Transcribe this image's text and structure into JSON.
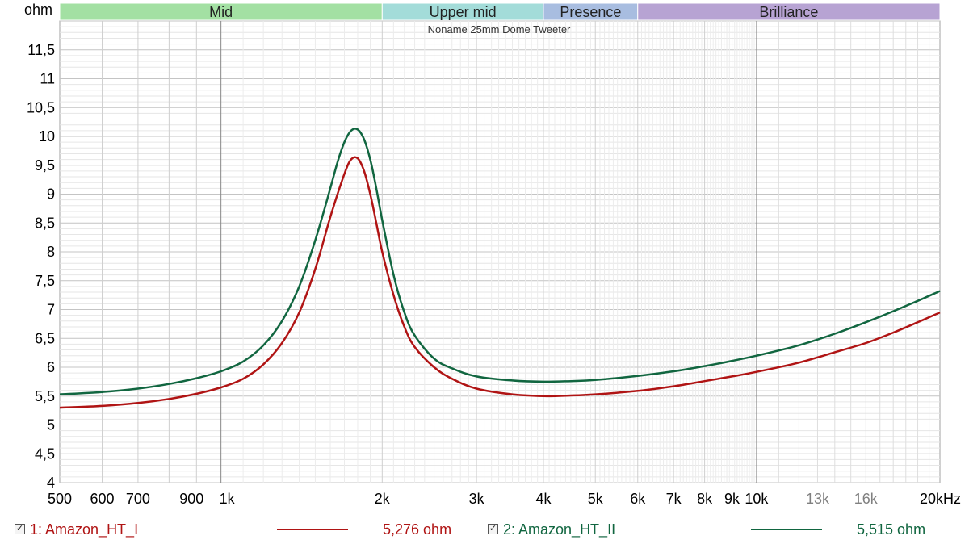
{
  "chart_data": {
    "type": "line",
    "title": "Noname 25mm Dome Tweeter",
    "unit_label": "ohm",
    "xlabel": "Hz",
    "x_scale": "log",
    "xlim": [
      500,
      22000
    ],
    "ylim": [
      4,
      12
    ],
    "grid": true,
    "y_ticks": [
      {
        "value": 4,
        "label": "4"
      },
      {
        "value": 4.5,
        "label": "4,5"
      },
      {
        "value": 5,
        "label": "5"
      },
      {
        "value": 5.5,
        "label": "5,5"
      },
      {
        "value": 6,
        "label": "6"
      },
      {
        "value": 6.5,
        "label": "6,5"
      },
      {
        "value": 7,
        "label": "7"
      },
      {
        "value": 7.5,
        "label": "7,5"
      },
      {
        "value": 8,
        "label": "8"
      },
      {
        "value": 8.5,
        "label": "8,5"
      },
      {
        "value": 9,
        "label": "9"
      },
      {
        "value": 9.5,
        "label": "9,5"
      },
      {
        "value": 10,
        "label": "10"
      },
      {
        "value": 10.5,
        "label": "10,5"
      },
      {
        "value": 11,
        "label": "11"
      },
      {
        "value": 11.5,
        "label": "11,5"
      }
    ],
    "x_ticks": [
      {
        "value": 500,
        "label": "500",
        "color": "#000000"
      },
      {
        "value": 600,
        "label": "600",
        "color": "#000000"
      },
      {
        "value": 700,
        "label": "700",
        "color": "#000000"
      },
      {
        "value": 900,
        "label": "900",
        "color": "#000000"
      },
      {
        "value": 1000,
        "label": "1k",
        "color": "#000000"
      },
      {
        "value": 2000,
        "label": "2k",
        "color": "#000000"
      },
      {
        "value": 3000,
        "label": "3k",
        "color": "#000000"
      },
      {
        "value": 4000,
        "label": "4k",
        "color": "#000000"
      },
      {
        "value": 5000,
        "label": "5k",
        "color": "#000000"
      },
      {
        "value": 6000,
        "label": "6k",
        "color": "#000000"
      },
      {
        "value": 7000,
        "label": "7k",
        "color": "#000000"
      },
      {
        "value": 8000,
        "label": "8k",
        "color": "#000000"
      },
      {
        "value": 9000,
        "label": "9k",
        "color": "#000000"
      },
      {
        "value": 10000,
        "label": "10k",
        "color": "#000000"
      },
      {
        "value": 13000,
        "label": "13k",
        "color": "#808080"
      },
      {
        "value": 16000,
        "label": "16k",
        "color": "#808080"
      },
      {
        "value": 20000,
        "label": "20kHz",
        "color": "#000000"
      }
    ],
    "bands": [
      {
        "label": "Mid",
        "from": 500,
        "to": 2000,
        "color": "#a3e0a3"
      },
      {
        "label": "Upper mid",
        "from": 2000,
        "to": 4000,
        "color": "#a3dcd9"
      },
      {
        "label": "Presence",
        "from": 4000,
        "to": 6000,
        "color": "#a8bde0"
      },
      {
        "label": "Brilliance",
        "from": 6000,
        "to": 22000,
        "color": "#b7a3d3"
      }
    ],
    "series": [
      {
        "name": "1: Amazon_HT_I",
        "color": "#b01414",
        "value_label": "5,276 ohm",
        "x": [
          500,
          600,
          700,
          800,
          900,
          1000,
          1100,
          1200,
          1300,
          1400,
          1500,
          1600,
          1700,
          1750,
          1800,
          1850,
          1900,
          1950,
          2000,
          2100,
          2200,
          2300,
          2500,
          2700,
          3000,
          3500,
          4000,
          4500,
          5000,
          6000,
          7000,
          8000,
          9000,
          10000,
          12000,
          14000,
          16000,
          18000,
          20000,
          22000
        ],
        "values": [
          5.3,
          5.33,
          5.38,
          5.45,
          5.54,
          5.65,
          5.8,
          6.05,
          6.42,
          6.95,
          7.7,
          8.6,
          9.35,
          9.6,
          9.62,
          9.4,
          9.0,
          8.5,
          8.0,
          7.25,
          6.7,
          6.35,
          6.0,
          5.8,
          5.63,
          5.53,
          5.5,
          5.51,
          5.53,
          5.59,
          5.67,
          5.76,
          5.84,
          5.92,
          6.08,
          6.26,
          6.42,
          6.6,
          6.78,
          6.95
        ]
      },
      {
        "name": "2: Amazon_HT_II",
        "color": "#116640",
        "value_label": "5,515 ohm",
        "x": [
          500,
          600,
          700,
          800,
          900,
          1000,
          1100,
          1200,
          1300,
          1400,
          1500,
          1600,
          1650,
          1700,
          1750,
          1800,
          1850,
          1900,
          1950,
          2000,
          2100,
          2200,
          2300,
          2500,
          2700,
          3000,
          3500,
          4000,
          4500,
          5000,
          6000,
          7000,
          8000,
          9000,
          10000,
          12000,
          14000,
          16000,
          18000,
          20000,
          22000
        ],
        "values": [
          5.53,
          5.57,
          5.63,
          5.71,
          5.81,
          5.93,
          6.1,
          6.38,
          6.8,
          7.4,
          8.2,
          9.1,
          9.55,
          9.9,
          10.1,
          10.12,
          9.95,
          9.6,
          9.1,
          8.55,
          7.6,
          6.95,
          6.55,
          6.15,
          5.98,
          5.84,
          5.77,
          5.75,
          5.76,
          5.78,
          5.85,
          5.93,
          6.02,
          6.11,
          6.2,
          6.38,
          6.58,
          6.78,
          6.97,
          7.15,
          7.32
        ]
      }
    ]
  }
}
